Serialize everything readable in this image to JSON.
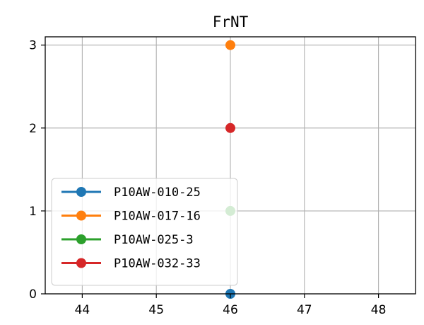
{
  "chart_data": {
    "type": "line",
    "title": "FrNT",
    "xlabel": "",
    "ylabel": "",
    "xlim": [
      43.5,
      48.5
    ],
    "ylim": [
      0,
      3.1
    ],
    "xticks": [
      44,
      45,
      46,
      47,
      48
    ],
    "yticks": [
      0,
      1,
      2,
      3
    ],
    "grid": true,
    "legend_position": "lower-left",
    "series": [
      {
        "name": "P10AW-010-25",
        "color": "#1f77b4",
        "x": [
          46
        ],
        "y": [
          0
        ]
      },
      {
        "name": "P10AW-017-16",
        "color": "#ff7f0e",
        "x": [
          46
        ],
        "y": [
          3
        ]
      },
      {
        "name": "P10AW-025-3",
        "color": "#2ca02c",
        "x": [
          46
        ],
        "y": [
          1
        ]
      },
      {
        "name": "P10AW-032-33",
        "color": "#d62728",
        "x": [
          46
        ],
        "y": [
          2
        ]
      }
    ]
  }
}
